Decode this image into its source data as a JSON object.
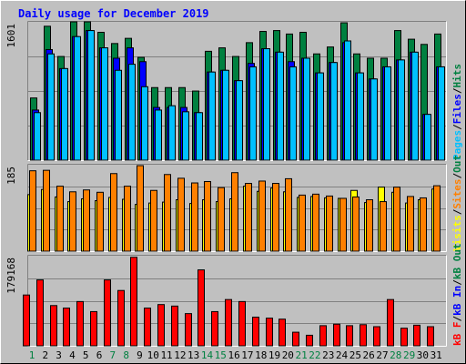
{
  "title": "Daily usage for December 2019",
  "colors": {
    "background": "#c0c0c0",
    "title": "#0000ff",
    "hits": "#008040",
    "files": "#0000ff",
    "pages": "#00c0ff",
    "visits": "#ffff00",
    "sites": "#ff8000",
    "kbin": "#0000ff",
    "kbout": "#008040",
    "kbf": "#ff0000",
    "weekday_label": "#000000",
    "weekend_label": "#008040"
  },
  "chart_data": [
    {
      "type": "bar",
      "panel": "top",
      "y_axis_max_label": "1601",
      "ylim": [
        0,
        1601
      ],
      "legend": [
        "Pages",
        "Files",
        "Hits"
      ],
      "legend_separator": "/",
      "categories": [
        "1",
        "2",
        "3",
        "4",
        "5",
        "6",
        "7",
        "8",
        "9",
        "10",
        "11",
        "12",
        "13",
        "14",
        "15",
        "16",
        "17",
        "18",
        "19",
        "20",
        "21",
        "22",
        "23",
        "24",
        "25",
        "26",
        "27",
        "28",
        "29",
        "30",
        "31"
      ],
      "weekend_days": [
        "1",
        "7",
        "8",
        "14",
        "15",
        "21",
        "22",
        "28",
        "29"
      ],
      "series": [
        {
          "name": "Hits",
          "values": [
            720,
            1550,
            1200,
            1620,
            1620,
            1480,
            1350,
            1410,
            1190,
            840,
            840,
            840,
            800,
            1260,
            1300,
            1200,
            1360,
            1490,
            1500,
            1460,
            1480,
            1230,
            1310,
            1590,
            1230,
            1180,
            1180,
            1500,
            1400,
            1340,
            1460
          ]
        },
        {
          "name": "Files",
          "values": [
            580,
            1280,
            1060,
            1430,
            1500,
            1300,
            1180,
            1300,
            1140,
            610,
            610,
            610,
            550,
            1020,
            1040,
            920,
            1120,
            1290,
            1250,
            1140,
            1180,
            1010,
            1130,
            1360,
            1010,
            940,
            1080,
            1160,
            1250,
            530,
            1080
          ]
        },
        {
          "name": "Pages",
          "values": [
            550,
            1230,
            1060,
            1430,
            1500,
            1300,
            1040,
            1110,
            850,
            580,
            630,
            560,
            550,
            1020,
            1040,
            920,
            1080,
            1290,
            1250,
            1080,
            1180,
            1010,
            1130,
            1380,
            1010,
            940,
            1080,
            1160,
            1250,
            530,
            1080
          ]
        }
      ]
    },
    {
      "type": "bar",
      "panel": "middle",
      "y_axis_max_label": "185",
      "ylim": [
        0,
        185
      ],
      "legend": [
        "Visits",
        "Sites",
        "Out"
      ],
      "legend_separator": "/",
      "categories": [
        "1",
        "2",
        "3",
        "4",
        "5",
        "6",
        "7",
        "8",
        "9",
        "10",
        "11",
        "12",
        "13",
        "14",
        "15",
        "16",
        "17",
        "18",
        "19",
        "20",
        "21",
        "22",
        "23",
        "24",
        "25",
        "26",
        "27",
        "28",
        "29",
        "30",
        "31"
      ],
      "series": [
        {
          "name": "Sites",
          "values": [
            172,
            173,
            139,
            127,
            131,
            126,
            166,
            139,
            183,
            130,
            164,
            156,
            146,
            149,
            136,
            168,
            145,
            150,
            145,
            155,
            120,
            122,
            118,
            113,
            116,
            110,
            106,
            137,
            117,
            114,
            140
          ]
        },
        {
          "name": "Visits",
          "values": [
            121,
            132,
            116,
            106,
            112,
            108,
            115,
            111,
            100,
            103,
            105,
            110,
            102,
            110,
            106,
            112,
            139,
            128,
            135,
            127,
            115,
            117,
            114,
            113,
            130,
            104,
            137,
            126,
            103,
            110,
            133
          ]
        }
      ]
    },
    {
      "type": "bar",
      "panel": "bottom",
      "y_axis_max_label": "179168",
      "ylim": [
        0,
        179168
      ],
      "legend": [
        "kB F",
        "kB In",
        "kB Out"
      ],
      "legend_separator": "/",
      "categories": [
        "1",
        "2",
        "3",
        "4",
        "5",
        "6",
        "7",
        "8",
        "9",
        "10",
        "11",
        "12",
        "13",
        "14",
        "15",
        "16",
        "17",
        "18",
        "19",
        "20",
        "21",
        "22",
        "23",
        "24",
        "25",
        "26",
        "27",
        "28",
        "29",
        "30",
        "31"
      ],
      "series": [
        {
          "name": "kB F",
          "values": [
            101000,
            131000,
            80000,
            75000,
            88000,
            68000,
            131000,
            110000,
            176000,
            75000,
            82000,
            79000,
            64000,
            151000,
            68000,
            92000,
            88000,
            57000,
            55000,
            53000,
            27000,
            21000,
            40000,
            43000,
            40000,
            42000,
            38000,
            92000,
            35000,
            41000,
            38000
          ]
        }
      ]
    }
  ]
}
